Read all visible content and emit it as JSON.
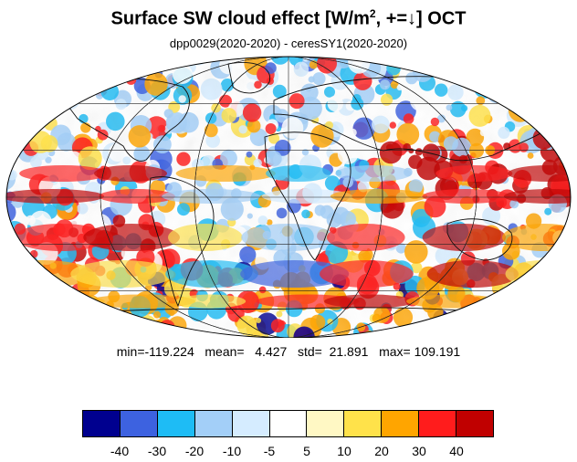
{
  "title": {
    "main": "Surface SW cloud effect [W/m",
    "sup": "2",
    "rest": ", +=↓]  OCT"
  },
  "subtitle": "dpp0029(2020-2020) - ceresSY1(2020-2020)",
  "stats": {
    "text": "min=-119.224   mean=   4.427   std=  21.891   max= 109.191",
    "min": -119.224,
    "mean": 4.427,
    "std": 21.891,
    "max": 109.191
  },
  "colorbar": {
    "colors": [
      "#00008f",
      "#3d62e0",
      "#1ebcf5",
      "#a3cff8",
      "#d5ecff",
      "#ffffff",
      "#fff8c4",
      "#ffe24a",
      "#ffa500",
      "#ff1c1c",
      "#c00000"
    ],
    "labels": [
      "-40",
      "-30",
      "-20",
      "-10",
      "-5",
      "5",
      "10",
      "20",
      "30",
      "40"
    ]
  },
  "map": {
    "projection": "mollweide",
    "graticule": true,
    "coastlines": true
  }
}
